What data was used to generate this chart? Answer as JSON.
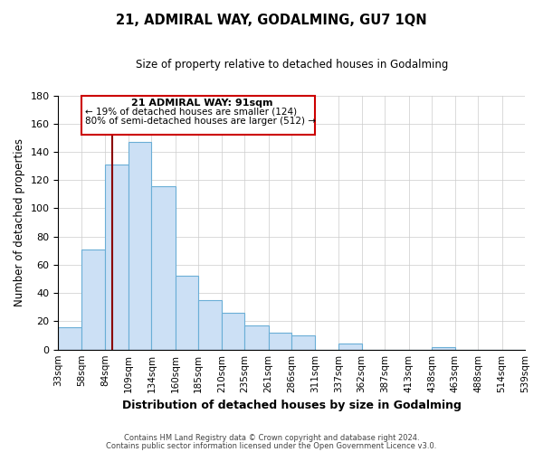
{
  "title": "21, ADMIRAL WAY, GODALMING, GU7 1QN",
  "subtitle": "Size of property relative to detached houses in Godalming",
  "xlabel": "Distribution of detached houses by size in Godalming",
  "ylabel": "Number of detached properties",
  "bar_values": [
    16,
    71,
    131,
    147,
    116,
    52,
    35,
    26,
    17,
    12,
    10,
    0,
    4,
    0,
    0,
    0,
    2,
    0,
    0,
    0
  ],
  "bin_edges": [
    33,
    58,
    84,
    109,
    134,
    160,
    185,
    210,
    235,
    261,
    286,
    311,
    337,
    362,
    387,
    413,
    438,
    463,
    488,
    514,
    539
  ],
  "bin_labels": [
    "33sqm",
    "58sqm",
    "84sqm",
    "109sqm",
    "134sqm",
    "160sqm",
    "185sqm",
    "210sqm",
    "235sqm",
    "261sqm",
    "286sqm",
    "311sqm",
    "337sqm",
    "362sqm",
    "387sqm",
    "413sqm",
    "438sqm",
    "463sqm",
    "488sqm",
    "514sqm",
    "539sqm"
  ],
  "bar_color": "#cce0f5",
  "bar_edge_color": "#6aaed6",
  "vline_x": 91,
  "vline_color": "#8b0000",
  "ylim": [
    0,
    180
  ],
  "yticks": [
    0,
    20,
    40,
    60,
    80,
    100,
    120,
    140,
    160,
    180
  ],
  "annotation_title": "21 ADMIRAL WAY: 91sqm",
  "annotation_line1": "← 19% of detached houses are smaller (124)",
  "annotation_line2": "80% of semi-detached houses are larger (512) →",
  "annotation_box_color": "#cc0000",
  "grid_color": "#cccccc",
  "footer_line1": "Contains HM Land Registry data © Crown copyright and database right 2024.",
  "footer_line2": "Contains public sector information licensed under the Open Government Licence v3.0."
}
